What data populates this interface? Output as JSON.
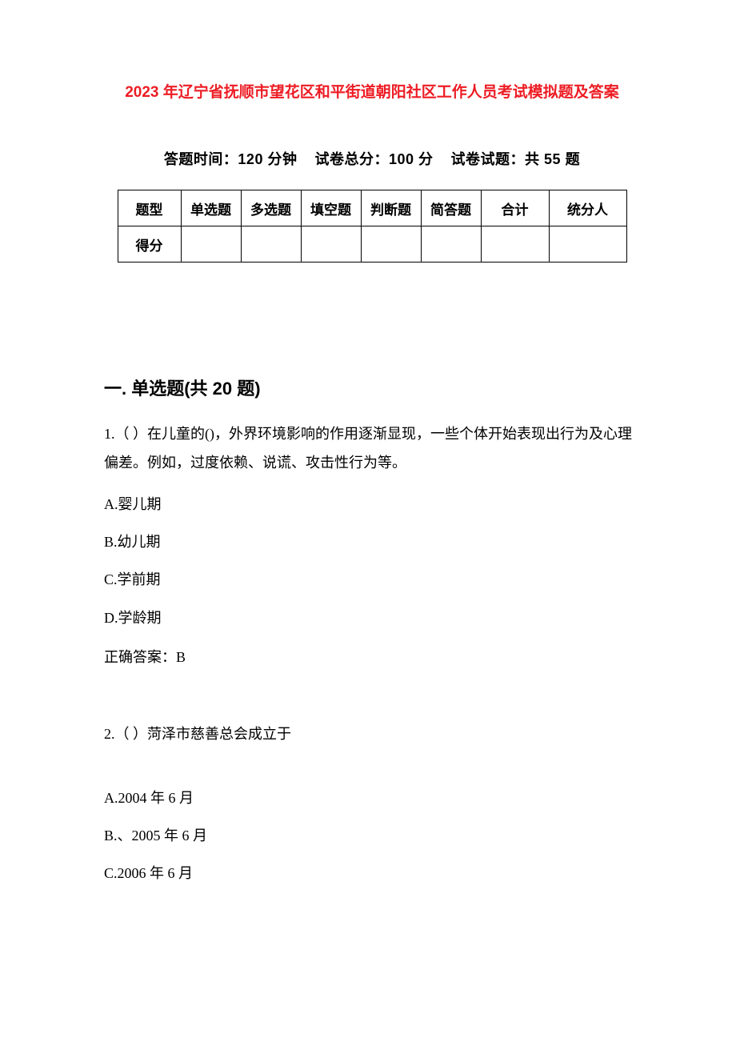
{
  "colors": {
    "title": "#ed1c24",
    "text": "#000000",
    "background": "#ffffff",
    "table_border": "#000000"
  },
  "fonts": {
    "heading_family": "SimHei",
    "body_family": "SimSun",
    "title_size_pt": 14,
    "meta_size_pt": 13,
    "section_size_pt": 16,
    "body_size_pt": 13
  },
  "title": "2023 年辽宁省抚顺市望花区和平街道朝阳社区工作人员考试模拟题及答案",
  "meta": {
    "time_label": "答题时间：",
    "time_value": "120 分钟",
    "total_label": "试卷总分：",
    "total_value": "100 分",
    "count_label": "试卷试题：",
    "count_value": "共 55 题"
  },
  "score_table": {
    "row_labels": [
      "题型",
      "得分"
    ],
    "columns": [
      "单选题",
      "多选题",
      "填空题",
      "判断题",
      "简答题",
      "合计",
      "统分人"
    ]
  },
  "section1": {
    "heading": "一. 单选题(共 20 题)",
    "q1": {
      "stem": "1.（ ）在儿童的()，外界环境影响的作用逐渐显现，一些个体开始表现出行为及心理偏差。例如，过度依赖、说谎、攻击性行为等。",
      "options": {
        "A": "A.婴儿期",
        "B": "B.幼儿期",
        "C": "C.学前期",
        "D": "D.学龄期"
      },
      "answer": "正确答案：B"
    },
    "q2": {
      "stem": "2.（ ）菏泽市慈善总会成立于",
      "options": {
        "A": "A.2004 年 6 月",
        "B": "B.、2005 年 6 月",
        "C": "C.2006 年 6 月"
      }
    }
  }
}
